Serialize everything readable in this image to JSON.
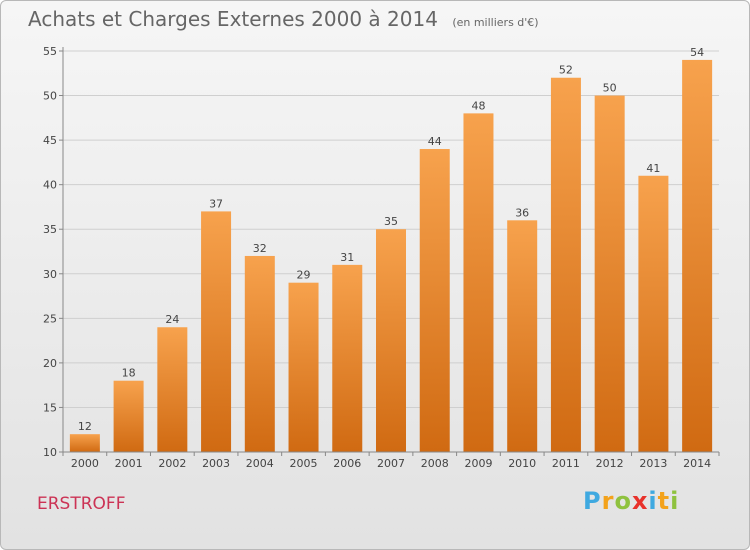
{
  "header": {
    "title": "Achats et Charges Externes 2000 à 2014",
    "subtitle": "(en milliers d'€)"
  },
  "footer": {
    "commune": "ERSTROFF",
    "logo_letters": [
      "P",
      "r",
      "o",
      "x",
      "i",
      "t",
      "i"
    ],
    "logo_colors": [
      "#3fa9e0",
      "#f3a21b",
      "#8fc23f",
      "#e8322b",
      "#3fa9e0",
      "#f3a21b",
      "#8fc23f"
    ]
  },
  "chart_data": {
    "type": "bar",
    "categories": [
      "2000",
      "2001",
      "2002",
      "2003",
      "2004",
      "2005",
      "2006",
      "2007",
      "2008",
      "2009",
      "2010",
      "2011",
      "2012",
      "2013",
      "2014"
    ],
    "values": [
      12,
      18,
      24,
      37,
      32,
      29,
      31,
      35,
      44,
      48,
      36,
      52,
      50,
      41,
      54
    ],
    "ylim": [
      10,
      55
    ],
    "yticks": [
      10,
      15,
      20,
      25,
      30,
      35,
      40,
      45,
      50,
      55
    ],
    "grid": true,
    "bar_color_top": "#f7a24d",
    "bar_color_bottom": "#d06a12"
  }
}
